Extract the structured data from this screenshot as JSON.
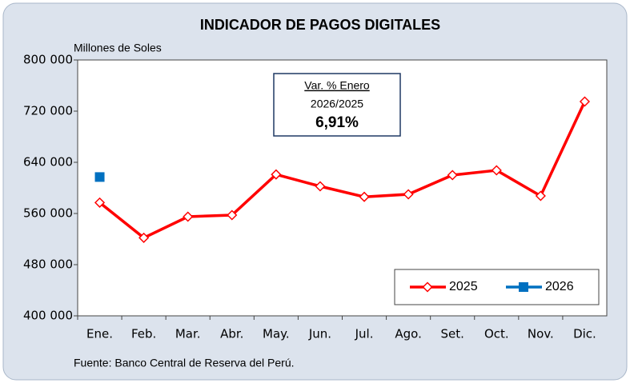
{
  "chart_data": {
    "type": "line",
    "title": "INDICADOR DE PAGOS DIGITALES",
    "y_label": "Millones de Soles",
    "source": "Fuente: Banco Central de Reserva del Perú.",
    "annotation": {
      "title": "Var. % Enero",
      "subtitle": "2026/2025",
      "value_label": "6,91%"
    },
    "categories": [
      "Ene.",
      "Feb.",
      "Mar.",
      "Abr.",
      "May.",
      "Jun.",
      "Jul.",
      "Ago.",
      "Set.",
      "Oct.",
      "Nov.",
      "Dic."
    ],
    "series": [
      {
        "name": "2025",
        "color": "#ff0000",
        "marker": "diamond",
        "values": [
          577000,
          522000,
          555000,
          557500,
          621000,
          602500,
          586000,
          590000,
          620000,
          627500,
          587500,
          735000
        ]
      },
      {
        "name": "2026",
        "color": "#0070c0",
        "marker": "square",
        "values": [
          617000,
          null,
          null,
          null,
          null,
          null,
          null,
          null,
          null,
          null,
          null,
          null
        ]
      }
    ],
    "ylim": [
      400000,
      800000
    ],
    "yticks": [
      {
        "value": 400000,
        "label": "400 000"
      },
      {
        "value": 480000,
        "label": "480 000"
      },
      {
        "value": 560000,
        "label": "560 000"
      },
      {
        "value": 640000,
        "label": "640 000"
      },
      {
        "value": 720000,
        "label": "720 000"
      },
      {
        "value": 800000,
        "label": "800 000"
      }
    ],
    "grid": false,
    "legend": "lower right"
  }
}
